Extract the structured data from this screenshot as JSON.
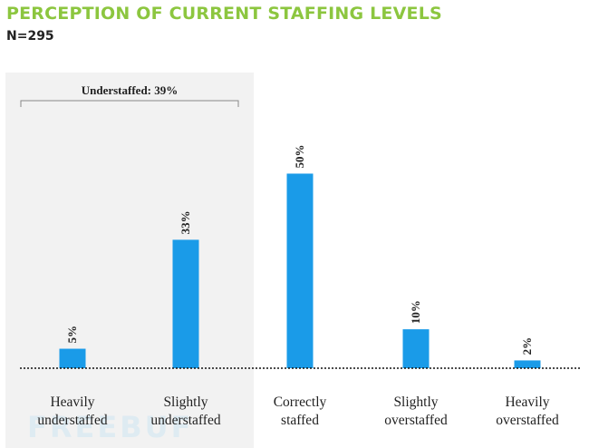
{
  "header": {
    "title": "PERCEPTION OF CURRENT STAFFING LEVELS",
    "subtitle": "N=295"
  },
  "chart_data": {
    "type": "bar",
    "title": "PERCEPTION OF CURRENT STAFFING LEVELS",
    "subtitle": "N=295",
    "categories": [
      [
        "Heavily",
        "understaffed"
      ],
      [
        "Slightly",
        "understaffed"
      ],
      [
        "Correctly",
        "staffed"
      ],
      [
        "Slightly",
        "overstaffed"
      ],
      [
        "Heavily",
        "overstaffed"
      ]
    ],
    "values": [
      5,
      33,
      50,
      10,
      2
    ],
    "value_labels": [
      "5%",
      "33%",
      "50%",
      "10%",
      "2%"
    ],
    "ylim": [
      0,
      55
    ],
    "grid": false,
    "annotation": {
      "text": "Understaffed: 39%",
      "spans_categories": [
        0,
        1
      ]
    },
    "colors": {
      "bar": "#1a9be8",
      "highlight_panel": "#f2f2f2",
      "title": "#8cc63f"
    }
  },
  "watermark": {
    "text": "FREEBUF"
  }
}
